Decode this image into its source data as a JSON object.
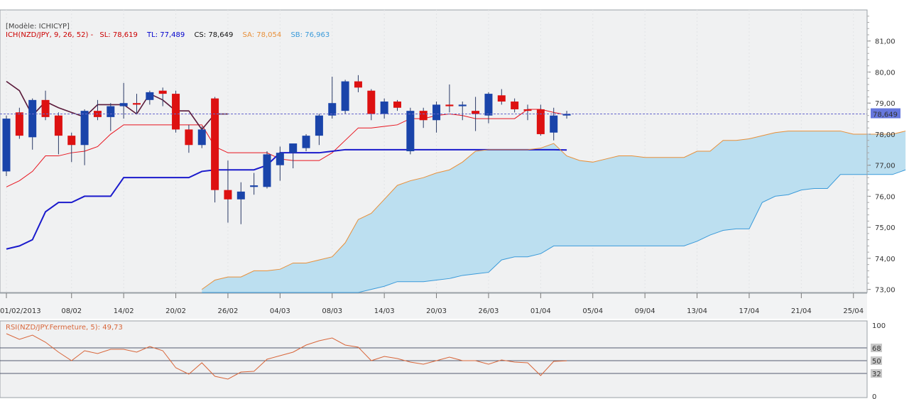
{
  "chart_data": [
    {
      "type": "candlestick",
      "title": "[Modèle: ICHICYP]",
      "legend": [
        {
          "label": "ICH(NZD/JPY, 9, 26, 52) -",
          "color": "#cc0000"
        },
        {
          "label": "SL: 78,619",
          "color": "#cc0000"
        },
        {
          "label": "TL: 77,489",
          "color": "#0000cc"
        },
        {
          "label": "CS: 78,649",
          "color": "#111111"
        },
        {
          "label": "SA: 78,054",
          "color": "#e8903a"
        },
        {
          "label": "SB: 76,963",
          "color": "#3a9ad9"
        }
      ],
      "last_price_label": "78,649",
      "last_price": 78.649,
      "ylim": [
        72.9,
        82.0
      ],
      "yticks": [
        {
          "v": 81,
          "label": "81,00"
        },
        {
          "v": 80,
          "label": "80,00"
        },
        {
          "v": 79,
          "label": "79,00"
        },
        {
          "v": 78,
          "label": "78,00"
        },
        {
          "v": 77,
          "label": "77,00"
        },
        {
          "v": 76,
          "label": "76,00"
        },
        {
          "v": 75,
          "label": "75,00"
        },
        {
          "v": 74,
          "label": "74,00"
        },
        {
          "v": 73,
          "label": "73,00"
        }
      ],
      "xticks": [
        {
          "i": 0,
          "label": "01/02/2013"
        },
        {
          "i": 5,
          "label": "08/02"
        },
        {
          "i": 9,
          "label": "14/02"
        },
        {
          "i": 13,
          "label": "20/02"
        },
        {
          "i": 17,
          "label": "26/02"
        },
        {
          "i": 21,
          "label": "04/03"
        },
        {
          "i": 25,
          "label": "08/03"
        },
        {
          "i": 29,
          "label": "14/03"
        },
        {
          "i": 33,
          "label": "20/03"
        },
        {
          "i": 37,
          "label": "26/03"
        },
        {
          "i": 41,
          "label": "01/04"
        },
        {
          "i": 45,
          "label": "05/04"
        },
        {
          "i": 49,
          "label": "09/04"
        },
        {
          "i": 53,
          "label": "13/04"
        },
        {
          "i": 57,
          "label": "17/04"
        },
        {
          "i": 61,
          "label": "21/04"
        },
        {
          "i": 65,
          "label": "25/04"
        }
      ],
      "candles": [
        {
          "o": 76.8,
          "h": 78.6,
          "l": 76.65,
          "c": 78.5
        },
        {
          "o": 78.7,
          "h": 78.85,
          "l": 77.85,
          "c": 77.95
        },
        {
          "o": 77.9,
          "h": 79.15,
          "l": 77.5,
          "c": 79.1
        },
        {
          "o": 79.1,
          "h": 79.4,
          "l": 78.45,
          "c": 78.55
        },
        {
          "o": 78.6,
          "h": 78.7,
          "l": 77.35,
          "c": 77.95
        },
        {
          "o": 77.95,
          "h": 78.05,
          "l": 77.1,
          "c": 77.65
        },
        {
          "o": 77.65,
          "h": 78.8,
          "l": 77.0,
          "c": 78.75
        },
        {
          "o": 78.75,
          "h": 79.1,
          "l": 78.45,
          "c": 78.55
        },
        {
          "o": 78.55,
          "h": 79.0,
          "l": 78.1,
          "c": 78.9
        },
        {
          "o": 78.9,
          "h": 79.65,
          "l": 78.5,
          "c": 79.0
        },
        {
          "o": 79.0,
          "h": 79.3,
          "l": 78.65,
          "c": 78.95
        },
        {
          "o": 79.1,
          "h": 79.4,
          "l": 78.95,
          "c": 79.35
        },
        {
          "o": 79.4,
          "h": 79.5,
          "l": 78.9,
          "c": 79.3
        },
        {
          "o": 79.3,
          "h": 79.4,
          "l": 78.05,
          "c": 78.15
        },
        {
          "o": 78.15,
          "h": 78.3,
          "l": 77.4,
          "c": 77.65
        },
        {
          "o": 77.65,
          "h": 78.25,
          "l": 77.55,
          "c": 78.15
        },
        {
          "o": 79.15,
          "h": 79.2,
          "l": 75.8,
          "c": 76.2
        },
        {
          "o": 76.2,
          "h": 77.15,
          "l": 75.15,
          "c": 75.9
        },
        {
          "o": 75.9,
          "h": 76.45,
          "l": 75.1,
          "c": 76.15
        },
        {
          "o": 76.3,
          "h": 76.75,
          "l": 76.05,
          "c": 76.35
        },
        {
          "o": 76.3,
          "h": 77.45,
          "l": 76.25,
          "c": 77.35
        },
        {
          "o": 77.0,
          "h": 77.6,
          "l": 76.5,
          "c": 77.4
        },
        {
          "o": 77.4,
          "h": 77.65,
          "l": 76.9,
          "c": 77.7
        },
        {
          "o": 77.55,
          "h": 78.0,
          "l": 77.45,
          "c": 77.95
        },
        {
          "o": 77.95,
          "h": 78.65,
          "l": 77.65,
          "c": 78.6
        },
        {
          "o": 78.6,
          "h": 79.85,
          "l": 78.5,
          "c": 79.0
        },
        {
          "o": 78.75,
          "h": 79.75,
          "l": 78.65,
          "c": 79.7
        },
        {
          "o": 79.7,
          "h": 79.9,
          "l": 79.35,
          "c": 79.5
        },
        {
          "o": 79.4,
          "h": 79.45,
          "l": 78.45,
          "c": 78.65
        },
        {
          "o": 78.65,
          "h": 79.15,
          "l": 78.5,
          "c": 79.05
        },
        {
          "o": 79.05,
          "h": 79.1,
          "l": 78.75,
          "c": 78.85
        },
        {
          "o": 77.45,
          "h": 78.85,
          "l": 77.35,
          "c": 78.75
        },
        {
          "o": 78.75,
          "h": 78.85,
          "l": 78.2,
          "c": 78.45
        },
        {
          "o": 78.45,
          "h": 79.05,
          "l": 78.05,
          "c": 78.95
        },
        {
          "o": 78.95,
          "h": 79.6,
          "l": 78.7,
          "c": 78.9
        },
        {
          "o": 78.9,
          "h": 79.05,
          "l": 78.45,
          "c": 78.95
        },
        {
          "o": 78.75,
          "h": 79.2,
          "l": 78.1,
          "c": 78.65
        },
        {
          "o": 78.6,
          "h": 79.35,
          "l": 78.35,
          "c": 79.3
        },
        {
          "o": 79.25,
          "h": 79.45,
          "l": 78.95,
          "c": 79.05
        },
        {
          "o": 79.05,
          "h": 79.15,
          "l": 78.7,
          "c": 78.8
        },
        {
          "o": 78.8,
          "h": 78.95,
          "l": 78.45,
          "c": 78.75
        },
        {
          "o": 78.8,
          "h": 78.95,
          "l": 77.95,
          "c": 78.0
        },
        {
          "o": 78.05,
          "h": 78.85,
          "l": 77.8,
          "c": 78.6
        },
        {
          "o": 78.6,
          "h": 78.75,
          "l": 78.5,
          "c": 78.649
        }
      ],
      "series": [
        {
          "name": "SL",
          "color": "#e8141e",
          "values": [
            76.3,
            76.5,
            76.8,
            77.3,
            77.3,
            77.4,
            77.45,
            77.6,
            78.0,
            78.3,
            78.3,
            78.3,
            78.3,
            78.3,
            78.3,
            78.3,
            77.6,
            77.4,
            77.4,
            77.4,
            77.4,
            77.2,
            77.15,
            77.15,
            77.15,
            77.4,
            77.8,
            78.2,
            78.2,
            78.25,
            78.3,
            78.5,
            78.5,
            78.6,
            78.65,
            78.6,
            78.5,
            78.5,
            78.5,
            78.5,
            78.8,
            78.8,
            78.7,
            78.619
          ]
        },
        {
          "name": "TL",
          "color": "#1a1acc",
          "values": [
            74.3,
            74.4,
            74.6,
            75.5,
            75.8,
            75.8,
            76.0,
            76.0,
            76.0,
            76.6,
            76.6,
            76.6,
            76.6,
            76.6,
            76.6,
            76.8,
            76.85,
            76.85,
            76.85,
            76.85,
            77.0,
            77.4,
            77.4,
            77.4,
            77.4,
            77.45,
            77.5,
            77.5,
            77.5,
            77.5,
            77.5,
            77.5,
            77.5,
            77.5,
            77.5,
            77.5,
            77.5,
            77.5,
            77.5,
            77.5,
            77.5,
            77.5,
            77.5,
            77.489
          ]
        },
        {
          "name": "CS",
          "color": "#5a1a3a",
          "values": [
            79.7,
            79.4,
            78.6,
            79.05,
            78.85,
            78.7,
            78.55,
            78.95,
            78.95,
            78.95,
            78.65,
            79.3,
            79.1,
            78.75,
            78.75,
            78.15,
            78.65,
            78.65
          ]
        },
        {
          "name": "SA",
          "start": 15,
          "color": "#e8903a",
          "values": [
            73.0,
            73.3,
            73.4,
            73.4,
            73.6,
            73.6,
            73.65,
            73.85,
            73.85,
            73.95,
            74.05,
            74.5,
            75.25,
            75.45,
            75.9,
            76.35,
            76.5,
            76.6,
            76.75,
            76.85,
            77.1,
            77.45,
            77.5,
            77.5,
            77.5,
            77.5,
            77.55,
            77.7,
            77.3,
            77.15,
            77.1,
            77.2,
            77.3,
            77.3,
            77.25,
            77.25,
            77.25,
            77.25,
            77.45,
            77.45,
            77.8,
            77.8,
            77.85,
            77.95,
            78.05,
            78.1,
            78.1,
            78.1,
            78.1,
            78.1,
            78.0,
            78.0,
            78.0,
            78.0,
            78.1
          ]
        },
        {
          "name": "SB",
          "start": 15,
          "color": "#3a9ad9",
          "values": [
            72.9,
            72.9,
            72.9,
            72.9,
            72.9,
            72.9,
            72.9,
            72.9,
            72.9,
            72.9,
            72.9,
            72.9,
            72.9,
            73.0,
            73.1,
            73.25,
            73.25,
            73.25,
            73.3,
            73.35,
            73.45,
            73.5,
            73.55,
            73.95,
            74.05,
            74.05,
            74.15,
            74.4,
            74.4,
            74.4,
            74.4,
            74.4,
            74.4,
            74.4,
            74.4,
            74.4,
            74.4,
            74.4,
            74.55,
            74.75,
            74.9,
            74.95,
            74.95,
            75.8,
            76.0,
            76.05,
            76.2,
            76.25,
            76.25,
            76.7,
            76.7,
            76.7,
            76.7,
            76.7,
            76.85
          ]
        }
      ]
    },
    {
      "type": "line",
      "title": "RSI(NZD/JPY.Fermeture, 5): 49,73",
      "ylim": [
        0,
        100
      ],
      "yticks": [
        {
          "v": 100,
          "label": "100"
        },
        {
          "v": 68,
          "label": "68"
        },
        {
          "v": 50,
          "label": "50"
        },
        {
          "v": 32,
          "label": "32"
        },
        {
          "v": 0,
          "label": "0"
        }
      ],
      "hlines": [
        68,
        50,
        32
      ],
      "series": [
        {
          "name": "RSI",
          "color": "#d8663a",
          "values": [
            88,
            80,
            86,
            76,
            62,
            50,
            64,
            60,
            66,
            66,
            62,
            70,
            64,
            40,
            31,
            47,
            28,
            24,
            34,
            35,
            52,
            57,
            62,
            72,
            78,
            82,
            72,
            69,
            50,
            56,
            53,
            48,
            45,
            50,
            55,
            50,
            50,
            45,
            51,
            48,
            47,
            29,
            49,
            49.73
          ]
        }
      ]
    }
  ]
}
